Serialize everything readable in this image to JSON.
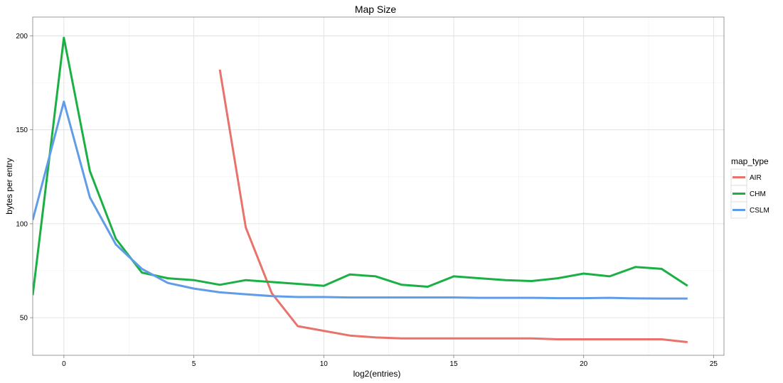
{
  "chart_data": {
    "type": "line",
    "title": "Map Size",
    "xlabel": "log2(entries)",
    "ylabel": "bytes per entry",
    "xlim": [
      -1.2,
      25.4
    ],
    "ylim": [
      30,
      210
    ],
    "xticks": [
      0,
      5,
      10,
      15,
      20,
      25
    ],
    "yticks": [
      50,
      100,
      150,
      200
    ],
    "grid": true,
    "legend_title": "map_type",
    "legend_position": "right",
    "series": [
      {
        "name": "AIR",
        "color": "#E8736C",
        "x": [
          6,
          7,
          8,
          9,
          10,
          11,
          12,
          13,
          14,
          15,
          16,
          17,
          18,
          19,
          20,
          21,
          22,
          23,
          24
        ],
        "y": [
          182,
          98,
          63,
          45.5,
          43,
          40.5,
          39.5,
          39,
          39,
          39,
          39,
          39,
          39,
          38.5,
          38.5,
          38.5,
          38.5,
          38.5,
          37
        ]
      },
      {
        "name": "CHM",
        "color": "#1AB043",
        "x": [
          -1.2,
          0,
          1,
          2,
          3,
          4,
          5,
          6,
          7,
          8,
          9,
          10,
          11,
          12,
          13,
          14,
          15,
          16,
          17,
          18,
          19,
          20,
          21,
          22,
          23,
          24
        ],
        "y": [
          62,
          199,
          128,
          92,
          74,
          71,
          70,
          67.5,
          70,
          69,
          68,
          67,
          73,
          72,
          67.5,
          66.5,
          72,
          71,
          70,
          69.5,
          71,
          73.5,
          72,
          77,
          76,
          67
        ]
      },
      {
        "name": "CSLM",
        "color": "#619CE8",
        "x": [
          -1.2,
          0,
          1,
          2,
          3,
          4,
          5,
          6,
          7,
          8,
          9,
          10,
          11,
          12,
          13,
          14,
          15,
          16,
          17,
          18,
          19,
          20,
          21,
          22,
          23,
          24
        ],
        "y": [
          102,
          165,
          114,
          89,
          76,
          68.5,
          65.5,
          63.5,
          62.5,
          61.5,
          61,
          61,
          60.8,
          60.8,
          60.8,
          60.8,
          60.8,
          60.6,
          60.6,
          60.6,
          60.4,
          60.4,
          60.6,
          60.3,
          60.2,
          60.2
        ]
      }
    ]
  }
}
